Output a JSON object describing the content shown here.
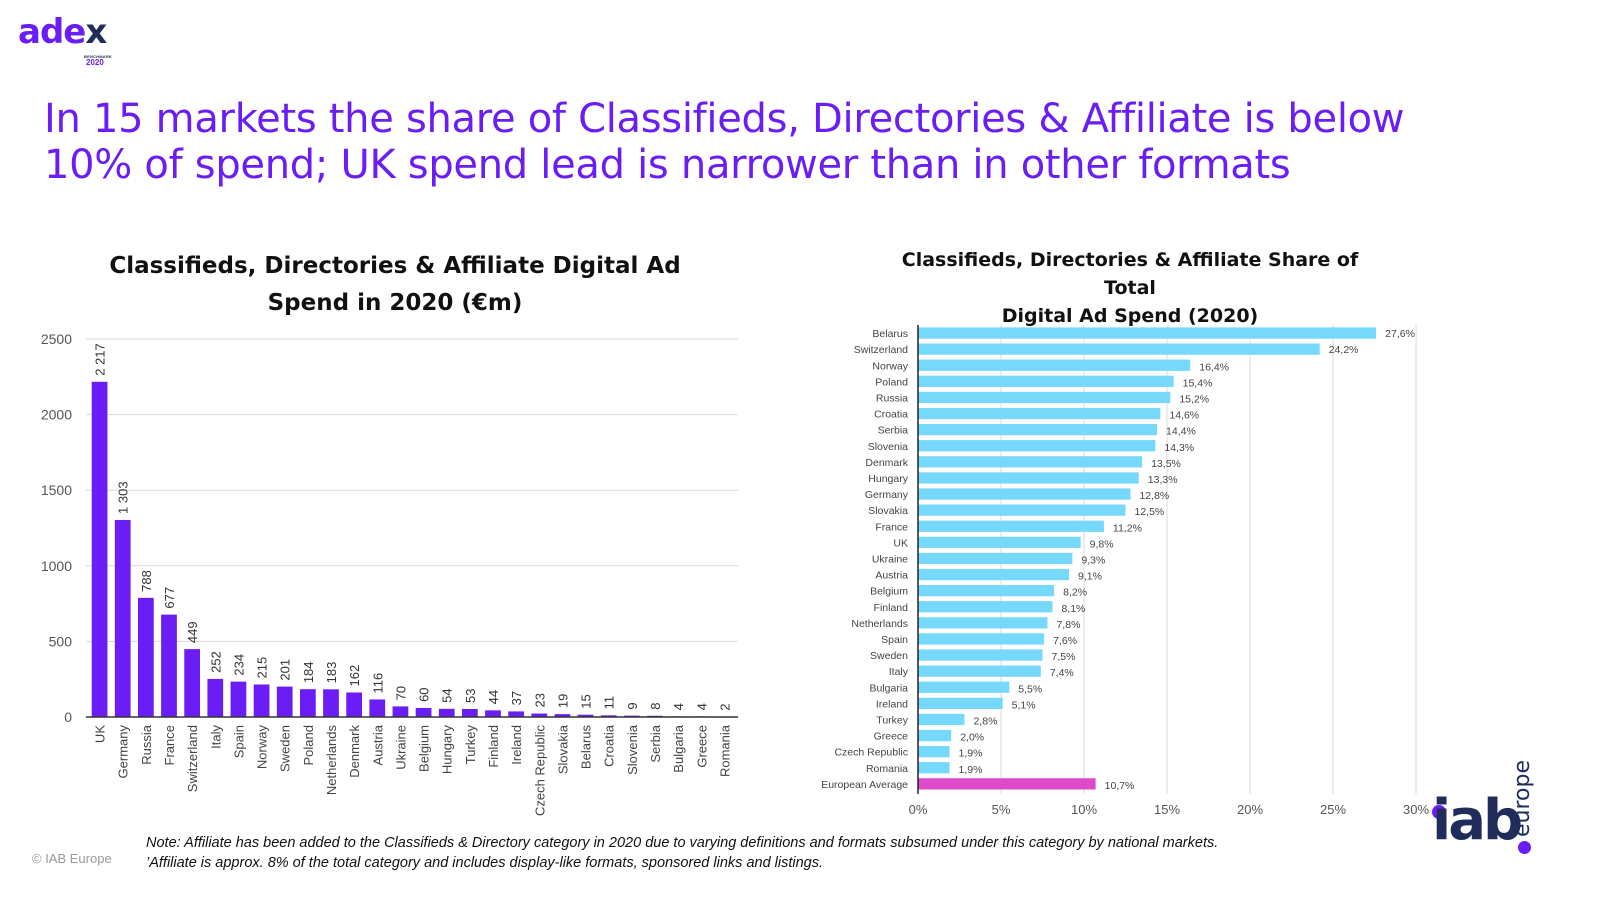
{
  "brand": {
    "adex_word": "ade",
    "adex_x": "x",
    "adex_sub1": "BENCHMARK",
    "adex_sub2": "2020",
    "iab_word": "iab",
    "iab_europe": "europe",
    "primary_color": "#6a1df5",
    "dark_color": "#202d5a"
  },
  "headline": {
    "line1": "In 15 markets the share of Classifieds, Directories & Affiliate is below",
    "line2": "10% of spend; UK spend lead is narrower than in other formats"
  },
  "chart_data": [
    {
      "type": "bar",
      "orientation": "vertical",
      "title_line1": "Classifieds, Directories & Affiliate Digital Ad",
      "title_line2": "Spend in 2020 (€m)",
      "xlabel": "",
      "ylabel": "",
      "ylim": [
        0,
        2500
      ],
      "yticks": [
        0,
        500,
        1000,
        1500,
        2000,
        2500
      ],
      "grid": true,
      "bar_color": "#6a1df5",
      "categories": [
        "UK",
        "Germany",
        "Russia",
        "France",
        "Switzerland",
        "Italy",
        "Spain",
        "Norway",
        "Sweden",
        "Poland",
        "Netherlands",
        "Denmark",
        "Austria",
        "Ukraine",
        "Belgium",
        "Hungary",
        "Turkey",
        "Finland",
        "Ireland",
        "Czech Republic",
        "Slovakia",
        "Belarus",
        "Croatia",
        "Slovenia",
        "Serbia",
        "Bulgaria",
        "Greece",
        "Romania"
      ],
      "values": [
        2217,
        1303,
        788,
        677,
        449,
        252,
        234,
        215,
        201,
        184,
        183,
        162,
        116,
        70,
        60,
        54,
        53,
        44,
        37,
        23,
        19,
        15,
        11,
        9,
        8,
        4,
        4,
        2
      ],
      "data_labels": [
        "2 217",
        "1 303",
        "788",
        "677",
        "449",
        "252",
        "234",
        "215",
        "201",
        "184",
        "183",
        "162",
        "116",
        "70",
        "60",
        "54",
        "53",
        "44",
        "37",
        "23",
        "19",
        "15",
        "11",
        "9",
        "8",
        "4",
        "4",
        "2"
      ]
    },
    {
      "type": "bar",
      "orientation": "horizontal",
      "title_line1": "Classifieds, Directories & Affiliate Share of Total",
      "title_line2": "Digital Ad Spend (2020)",
      "xlabel": "",
      "ylabel": "",
      "xlim": [
        0,
        30
      ],
      "xticks": [
        0,
        5,
        10,
        15,
        20,
        25,
        30
      ],
      "xtick_labels": [
        "0%",
        "5%",
        "10%",
        "15%",
        "20%",
        "25%",
        "30%"
      ],
      "grid": true,
      "bar_color": "#76d9fb",
      "highlight_color": "#dd4bc8",
      "categories": [
        "Belarus",
        "Switzerland",
        "Norway",
        "Poland",
        "Russia",
        "Croatia",
        "Serbia",
        "Slovenia",
        "Denmark",
        "Hungary",
        "Germany",
        "Slovakia",
        "France",
        "UK",
        "Ukraine",
        "Austria",
        "Belgium",
        "Finland",
        "Netherlands",
        "Spain",
        "Sweden",
        "Italy",
        "Bulgaria",
        "Ireland",
        "Turkey",
        "Greece",
        "Czech Republic",
        "Romania",
        "European Average"
      ],
      "values": [
        27.6,
        24.2,
        16.4,
        15.4,
        15.2,
        14.6,
        14.4,
        14.3,
        13.5,
        13.3,
        12.8,
        12.5,
        11.2,
        9.8,
        9.3,
        9.1,
        8.2,
        8.1,
        7.8,
        7.6,
        7.5,
        7.4,
        5.5,
        5.1,
        2.8,
        2.0,
        1.9,
        1.9,
        10.7
      ],
      "data_labels": [
        "27,6%",
        "24,2%",
        "16,4%",
        "15,4%",
        "15,2%",
        "14,6%",
        "14,4%",
        "14,3%",
        "13,5%",
        "13,3%",
        "12,8%",
        "12,5%",
        "11,2%",
        "9,8%",
        "9,3%",
        "9,1%",
        "8,2%",
        "8,1%",
        "7,8%",
        "7,6%",
        "7,5%",
        "7,4%",
        "5,5%",
        "5,1%",
        "2,8%",
        "2,0%",
        "1,9%",
        "1,9%",
        "10,7%"
      ],
      "highlight_category": "European Average"
    }
  ],
  "footer": {
    "note_line1": "Note: Affiliate has been added to the Classifieds & Directory category in 2020 due to varying definitions and formats subsumed under this category by national markets.",
    "note_line2": "’Affiliate is approx. 8% of the total category and includes display-like formats, sponsored links and listings.",
    "copyright": "© IAB Europe"
  }
}
